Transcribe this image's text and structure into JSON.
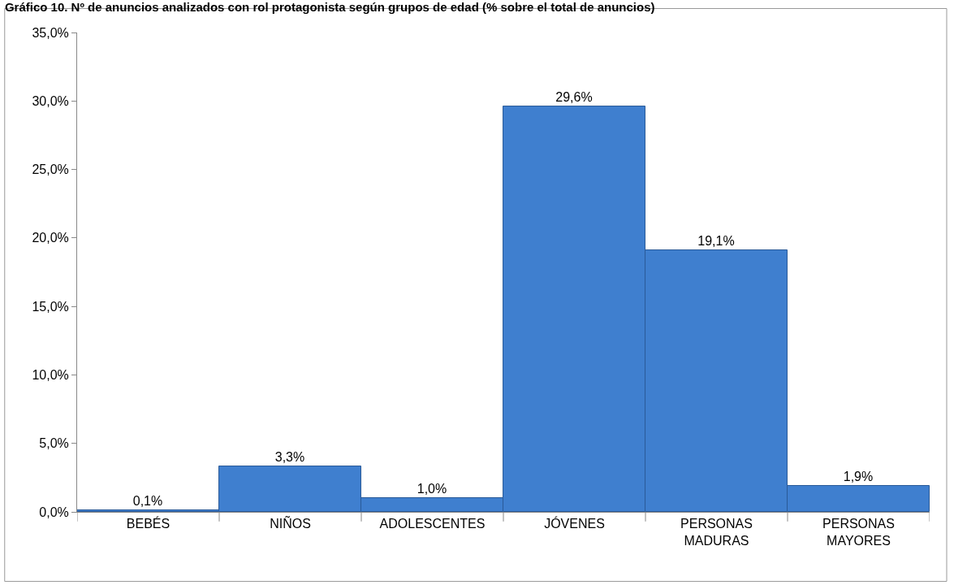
{
  "chart_data": {
    "type": "bar",
    "title": "Gráfico 10. Nº de anuncios analizados con rol protagonista según grupos de edad (% sobre el total de anuncios)",
    "categories": [
      "BEBÉS",
      "NIÑOS",
      "ADOLESCENTES",
      "JÓVENES",
      "PERSONAS MADURAS",
      "PERSONAS MAYORES"
    ],
    "values": [
      0.1,
      3.3,
      1.0,
      29.6,
      19.1,
      1.9
    ],
    "value_labels": [
      "0,1%",
      "3,3%",
      "1,0%",
      "29,6%",
      "19,1%",
      "1,9%"
    ],
    "color": "#3f7fcf",
    "ylim": [
      0,
      35
    ],
    "yticks": [
      {
        "value": 0,
        "label": "0,0%"
      },
      {
        "value": 5,
        "label": "5,0%"
      },
      {
        "value": 10,
        "label": "10,0%"
      },
      {
        "value": 15,
        "label": "15,0%"
      },
      {
        "value": 20,
        "label": "20,0%"
      },
      {
        "value": 25,
        "label": "25,0%"
      },
      {
        "value": 30,
        "label": "30,0%"
      },
      {
        "value": 35,
        "label": "35,0%"
      }
    ],
    "legend": false
  }
}
